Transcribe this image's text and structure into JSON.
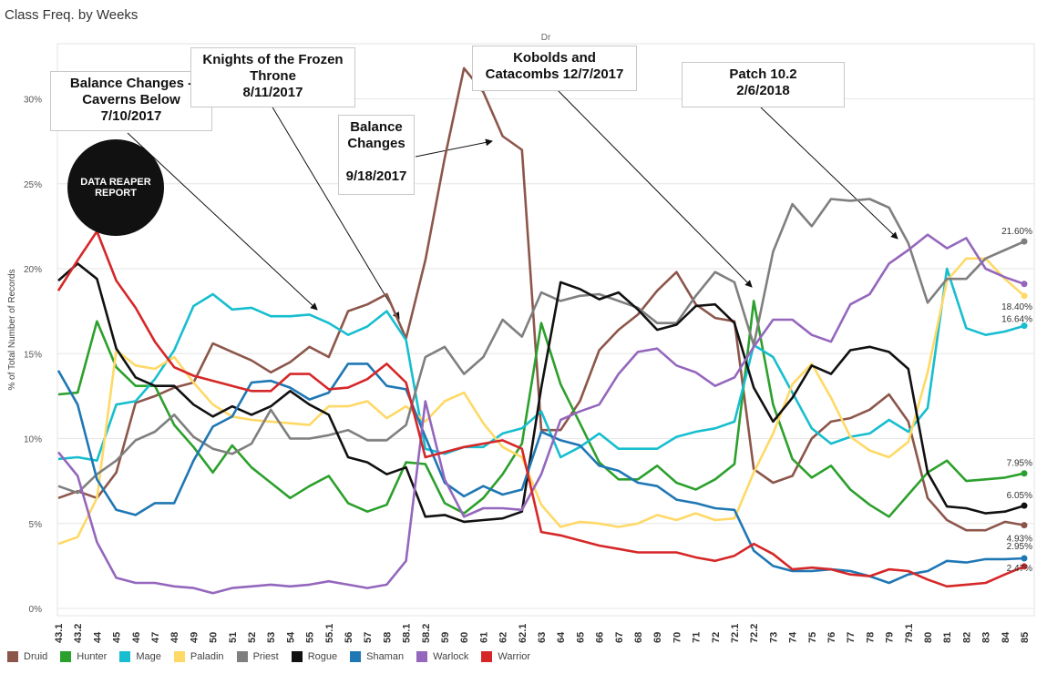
{
  "page": {
    "title": "Class Freq. by Weeks",
    "col_header": "Dr",
    "logo_text": "DATA REAPER REPORT",
    "ylabel": "% of Total Number of Records"
  },
  "annotations": [
    {
      "text": "Balance Changes -\nCaverns Below\n7/10/2017"
    },
    {
      "text": "Knights of the Frozen\nThrone\n8/11/2017"
    },
    {
      "text": "Balance\nChanges\n\n9/18/2017"
    },
    {
      "text": "Kobolds and\nCatacombs 12/7/2017"
    },
    {
      "text": "Patch 10.2\n2/6/2018"
    }
  ],
  "chart_data": {
    "type": "line",
    "title": "Class Freq. by Weeks",
    "xlabel": "",
    "ylabel": "% of Total Number of Records",
    "ylim": [
      0,
      33
    ],
    "yticks": [
      "0%",
      "5%",
      "10%",
      "15%",
      "20%",
      "25%",
      "30%"
    ],
    "grid": true,
    "legend_position": "bottom",
    "categories": [
      "43.1",
      "43.2",
      "44",
      "45",
      "46",
      "47",
      "48",
      "49",
      "50",
      "51",
      "52",
      "53",
      "54",
      "55",
      "55.1",
      "56",
      "57",
      "58",
      "58.1",
      "58.2",
      "59",
      "60",
      "61",
      "62",
      "62.1",
      "63",
      "64",
      "65",
      "66",
      "67",
      "68",
      "69",
      "70",
      "71",
      "72",
      "72.1",
      "72.2",
      "73",
      "74",
      "75",
      "76",
      "77",
      "78",
      "79",
      "79.1",
      "80",
      "81",
      "82",
      "83",
      "84",
      "85"
    ],
    "series": [
      {
        "name": "Druid",
        "color": "#8c564b",
        "end_label": "4.93%",
        "values": [
          6.5,
          6.9,
          6.5,
          8.0,
          12.1,
          12.5,
          13.0,
          13.3,
          15.6,
          15.1,
          14.6,
          13.9,
          14.5,
          15.4,
          14.8,
          17.5,
          17.9,
          18.5,
          15.9,
          20.5,
          26.5,
          31.8,
          30.4,
          27.8,
          27.0,
          10.5,
          10.5,
          12.2,
          15.2,
          16.4,
          17.3,
          18.7,
          19.8,
          17.9,
          17.1,
          16.9,
          8.2,
          7.4,
          7.8,
          10.0,
          11.0,
          11.2,
          11.7,
          12.6,
          11.0,
          6.5,
          5.2,
          4.6,
          4.6,
          5.1,
          4.9
        ]
      },
      {
        "name": "Hunter",
        "color": "#2ca02c",
        "end_label": "7.95%",
        "values": [
          12.6,
          12.7,
          16.9,
          14.2,
          13.1,
          13.1,
          10.8,
          9.5,
          8.0,
          9.6,
          8.3,
          7.4,
          6.5,
          7.2,
          7.8,
          6.2,
          5.7,
          6.1,
          8.6,
          8.5,
          6.2,
          5.6,
          6.5,
          7.9,
          9.7,
          16.8,
          13.2,
          10.9,
          8.6,
          7.6,
          7.6,
          8.4,
          7.4,
          7.0,
          7.6,
          8.5,
          18.1,
          12.0,
          8.8,
          7.7,
          8.4,
          7.0,
          6.1,
          5.4,
          6.7,
          8.0,
          8.7,
          7.5,
          7.6,
          7.7,
          7.95
        ]
      },
      {
        "name": "Mage",
        "color": "#17becf",
        "end_label": "16.64%",
        "values": [
          8.8,
          8.9,
          8.7,
          12.0,
          12.2,
          13.5,
          15.2,
          17.8,
          18.5,
          17.6,
          17.7,
          17.2,
          17.2,
          17.3,
          16.8,
          16.1,
          16.6,
          17.5,
          15.8,
          9.4,
          9.1,
          9.5,
          9.5,
          10.3,
          10.6,
          11.6,
          8.9,
          9.5,
          10.3,
          9.4,
          9.4,
          9.4,
          10.1,
          10.4,
          10.6,
          11.0,
          15.5,
          14.8,
          12.7,
          10.6,
          9.7,
          10.1,
          10.3,
          11.1,
          10.4,
          11.8,
          20.0,
          16.5,
          16.1,
          16.3,
          16.64
        ]
      },
      {
        "name": "Paladin",
        "color": "#ffd966",
        "end_label": "18.40%",
        "values": [
          3.8,
          4.2,
          6.5,
          15.2,
          14.3,
          14.1,
          14.8,
          13.3,
          12.0,
          11.3,
          11.1,
          11.0,
          10.9,
          10.8,
          11.9,
          11.9,
          12.2,
          11.2,
          11.9,
          11.0,
          12.2,
          12.7,
          10.9,
          9.5,
          8.9,
          6.1,
          4.8,
          5.1,
          5.0,
          4.8,
          5.0,
          5.5,
          5.2,
          5.6,
          5.2,
          5.3,
          8.0,
          10.3,
          13.2,
          14.4,
          12.4,
          10.1,
          9.3,
          8.9,
          9.8,
          13.9,
          19.3,
          20.6,
          20.6,
          19.4,
          18.4
        ]
      },
      {
        "name": "Priest",
        "color": "#7f7f7f",
        "end_label": "21.60%",
        "values": [
          7.2,
          6.8,
          7.9,
          8.7,
          9.9,
          10.4,
          11.4,
          10.1,
          9.4,
          9.1,
          9.7,
          11.7,
          10.0,
          10.0,
          10.2,
          10.5,
          9.9,
          9.9,
          10.8,
          14.8,
          15.4,
          13.8,
          14.8,
          17.0,
          16.0,
          18.6,
          18.1,
          18.4,
          18.5,
          18.1,
          17.7,
          16.8,
          16.8,
          18.4,
          19.8,
          19.2,
          15.5,
          21.0,
          23.8,
          22.5,
          24.1,
          24.0,
          24.1,
          23.6,
          21.5,
          18.0,
          19.4,
          19.4,
          20.6,
          21.1,
          21.6
        ]
      },
      {
        "name": "Rogue",
        "color": "#111111",
        "end_label": "6.05%",
        "values": [
          19.3,
          20.3,
          19.4,
          15.3,
          13.6,
          13.1,
          13.1,
          12.0,
          11.3,
          11.9,
          11.4,
          11.9,
          12.8,
          12.0,
          11.4,
          8.9,
          8.6,
          7.9,
          8.3,
          5.4,
          5.5,
          5.1,
          5.2,
          5.3,
          5.7,
          13.0,
          19.2,
          18.8,
          18.2,
          18.6,
          17.6,
          16.4,
          16.7,
          17.8,
          17.9,
          16.8,
          13.0,
          11.0,
          12.4,
          14.3,
          13.8,
          15.2,
          15.4,
          15.1,
          14.1,
          8.0,
          6.0,
          5.9,
          5.6,
          5.7,
          6.05
        ]
      },
      {
        "name": "Shaman",
        "color": "#1f77b4",
        "end_label": "2.95%",
        "values": [
          14.0,
          12.0,
          7.6,
          5.8,
          5.5,
          6.2,
          6.2,
          8.7,
          10.7,
          11.3,
          13.3,
          13.4,
          13.0,
          12.3,
          12.7,
          14.4,
          14.4,
          13.1,
          12.9,
          10.1,
          7.4,
          6.6,
          7.2,
          6.7,
          7.0,
          10.4,
          9.9,
          9.6,
          8.4,
          8.1,
          7.4,
          7.2,
          6.4,
          6.2,
          5.9,
          5.8,
          3.4,
          2.5,
          2.2,
          2.2,
          2.3,
          2.2,
          1.9,
          1.5,
          2.0,
          2.2,
          2.8,
          2.7,
          2.9,
          2.9,
          2.95
        ]
      },
      {
        "name": "Warlock",
        "color": "#9467bd",
        "end_label": "",
        "values": [
          9.2,
          7.8,
          3.9,
          1.8,
          1.5,
          1.5,
          1.3,
          1.2,
          0.9,
          1.2,
          1.3,
          1.4,
          1.3,
          1.4,
          1.6,
          1.4,
          1.2,
          1.4,
          2.8,
          12.2,
          7.6,
          5.4,
          5.9,
          5.9,
          5.8,
          7.9,
          11.1,
          11.6,
          12.0,
          13.8,
          15.1,
          15.3,
          14.3,
          13.9,
          13.1,
          13.6,
          15.4,
          17.0,
          17.0,
          16.1,
          15.7,
          17.9,
          18.5,
          20.3,
          21.1,
          22.0,
          21.2,
          21.8,
          20.0,
          19.5,
          19.1
        ]
      },
      {
        "name": "Warrior",
        "color": "#d62728",
        "end_label": "2.47%",
        "values": [
          18.7,
          20.5,
          22.2,
          19.3,
          17.7,
          15.7,
          14.2,
          13.7,
          13.4,
          13.1,
          12.8,
          12.8,
          13.8,
          13.8,
          12.9,
          13.0,
          13.5,
          14.4,
          13.3,
          8.9,
          9.2,
          9.5,
          9.7,
          9.9,
          9.4,
          4.5,
          4.3,
          4.0,
          3.7,
          3.5,
          3.3,
          3.3,
          3.3,
          3.0,
          2.8,
          3.1,
          3.8,
          3.2,
          2.3,
          2.4,
          2.3,
          2.0,
          1.9,
          2.3,
          2.2,
          1.7,
          1.3,
          1.4,
          1.5,
          2.0,
          2.47
        ]
      }
    ]
  }
}
